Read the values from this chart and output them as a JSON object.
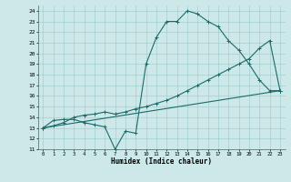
{
  "title": "",
  "xlabel": "Humidex (Indice chaleur)",
  "bg_color": "#cce8e8",
  "line_color": "#1a6b6b",
  "xlim": [
    -0.5,
    23.5
  ],
  "ylim": [
    11,
    24.5
  ],
  "xticks": [
    0,
    1,
    2,
    3,
    4,
    5,
    6,
    7,
    8,
    9,
    10,
    11,
    12,
    13,
    14,
    15,
    16,
    17,
    18,
    19,
    20,
    21,
    22,
    23
  ],
  "yticks": [
    11,
    12,
    13,
    14,
    15,
    16,
    17,
    18,
    19,
    20,
    21,
    22,
    23,
    24
  ],
  "series1_x": [
    0,
    1,
    2,
    3,
    4,
    5,
    6,
    7,
    8,
    9,
    10,
    11,
    12,
    13,
    14,
    15,
    16,
    17,
    18,
    19,
    20,
    21,
    22,
    23
  ],
  "series1_y": [
    13.0,
    13.7,
    13.8,
    13.8,
    13.5,
    13.3,
    13.1,
    11.0,
    12.7,
    12.5,
    19.0,
    21.5,
    23.0,
    23.0,
    24.0,
    23.7,
    23.0,
    22.5,
    21.2,
    20.3,
    19.0,
    17.5,
    16.5,
    16.5
  ],
  "series2_x": [
    0,
    1,
    2,
    3,
    4,
    5,
    6,
    7,
    8,
    9,
    10,
    11,
    12,
    13,
    14,
    15,
    16,
    17,
    18,
    19,
    20,
    21,
    22,
    23
  ],
  "series2_y": [
    13.0,
    13.2,
    13.5,
    14.0,
    14.2,
    14.3,
    14.5,
    14.3,
    14.5,
    14.8,
    15.0,
    15.3,
    15.6,
    16.0,
    16.5,
    17.0,
    17.5,
    18.0,
    18.5,
    19.0,
    19.5,
    20.5,
    21.2,
    16.5
  ],
  "series3_x": [
    0,
    23
  ],
  "series3_y": [
    13.0,
    16.5
  ]
}
